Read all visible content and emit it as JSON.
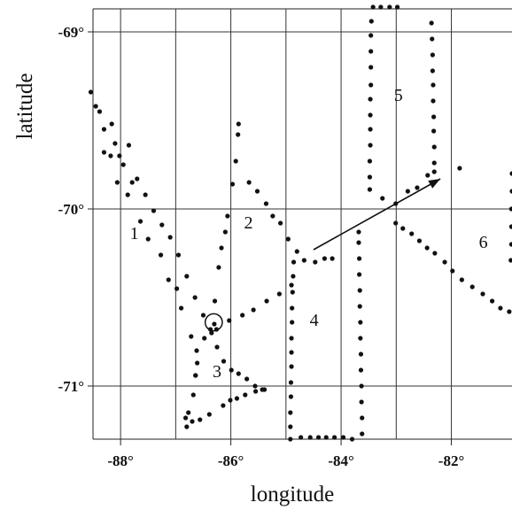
{
  "chart_data": {
    "type": "scatter",
    "title": "",
    "xlabel": "longitude",
    "ylabel": "latitude",
    "xlim": [
      -88.5,
      -80.9
    ],
    "ylim": [
      -71.3,
      -68.87
    ],
    "grid": true,
    "xticks": [
      {
        "value": -88,
        "label": "-88°"
      },
      {
        "value": -86,
        "label": "-86°"
      },
      {
        "value": -84,
        "label": "-84°"
      },
      {
        "value": -82,
        "label": "-82°"
      }
    ],
    "yticks": [
      {
        "value": -69,
        "label": "-69°"
      },
      {
        "value": -70,
        "label": "-70°"
      },
      {
        "value": -71,
        "label": "-71°"
      }
    ],
    "extra_gridlines_x": [
      -87,
      -85,
      -83
    ],
    "segment_labels": [
      {
        "text": "1",
        "x": -87.75,
        "y": -70.17
      },
      {
        "text": "2",
        "x": -85.68,
        "y": -70.11
      },
      {
        "text": "3",
        "x": -86.25,
        "y": -70.95
      },
      {
        "text": "4",
        "x": -84.49,
        "y": -70.66
      },
      {
        "text": "5",
        "x": -82.96,
        "y": -69.39
      },
      {
        "text": "6",
        "x": -81.42,
        "y": -70.22
      }
    ],
    "circle_marker": {
      "x": -86.31,
      "y": -70.64,
      "radius_deg": 0.155
    },
    "arrow": {
      "from": {
        "x": -84.5,
        "y": -70.23
      },
      "to": {
        "x": -82.2,
        "y": -69.83
      }
    },
    "series": [
      {
        "points": [
          [
            -88.54,
            -69.34
          ],
          [
            -88.45,
            -69.42
          ],
          [
            -88.38,
            -69.45
          ],
          [
            -88.3,
            -69.55
          ],
          [
            -88.16,
            -69.52
          ],
          [
            -88.1,
            -69.63
          ],
          [
            -88.02,
            -69.7
          ],
          [
            -87.95,
            -69.75
          ],
          [
            -87.85,
            -69.64
          ],
          [
            -87.79,
            -69.85
          ],
          [
            -87.7,
            -69.83
          ],
          [
            -87.55,
            -69.92
          ],
          [
            -87.4,
            -70.01
          ],
          [
            -87.25,
            -70.09
          ],
          [
            -87.1,
            -70.16
          ],
          [
            -86.95,
            -70.26
          ],
          [
            -86.8,
            -70.38
          ],
          [
            -86.65,
            -70.5
          ],
          [
            -86.5,
            -70.6
          ],
          [
            -86.37,
            -70.68
          ],
          [
            -86.3,
            -70.65
          ]
        ]
      },
      {
        "points": [
          [
            -88.3,
            -69.68
          ],
          [
            -88.18,
            -69.7
          ],
          [
            -88.06,
            -69.85
          ],
          [
            -87.87,
            -69.92
          ],
          [
            -87.64,
            -70.07
          ],
          [
            -87.5,
            -70.17
          ],
          [
            -87.27,
            -70.26
          ],
          [
            -87.13,
            -70.4
          ],
          [
            -86.98,
            -70.45
          ],
          [
            -86.9,
            -70.56
          ],
          [
            -86.72,
            -70.72
          ],
          [
            -86.62,
            -70.8
          ],
          [
            -86.61,
            -70.87
          ],
          [
            -86.64,
            -70.94
          ]
        ]
      },
      {
        "points": [
          [
            -85.86,
            -69.52
          ],
          [
            -85.87,
            -69.58
          ],
          [
            -85.91,
            -69.73
          ],
          [
            -85.97,
            -69.86
          ],
          [
            -86.06,
            -70.04
          ],
          [
            -86.1,
            -70.13
          ],
          [
            -86.17,
            -70.22
          ],
          [
            -86.22,
            -70.33
          ],
          [
            -86.29,
            -70.52
          ],
          [
            -86.35,
            -70.7
          ]
        ]
      },
      {
        "points": [
          [
            -85.67,
            -69.85
          ],
          [
            -85.52,
            -69.9
          ],
          [
            -85.36,
            -69.97
          ],
          [
            -85.24,
            -70.04
          ],
          [
            -85.1,
            -70.08
          ],
          [
            -84.96,
            -70.17
          ],
          [
            -84.8,
            -70.24
          ],
          [
            -84.67,
            -70.29
          ],
          [
            -84.47,
            -70.3
          ],
          [
            -84.3,
            -70.28
          ],
          [
            -84.16,
            -70.28
          ]
        ]
      },
      {
        "points": [
          [
            -84.9,
            -70.43
          ],
          [
            -85.12,
            -70.48
          ],
          [
            -85.35,
            -70.52
          ],
          [
            -85.59,
            -70.57
          ],
          [
            -85.79,
            -70.6
          ],
          [
            -86.03,
            -70.63
          ],
          [
            -86.26,
            -70.68
          ],
          [
            -86.48,
            -70.73
          ]
        ]
      },
      {
        "points": [
          [
            -86.25,
            -70.78
          ],
          [
            -86.13,
            -70.86
          ],
          [
            -85.99,
            -70.91
          ],
          [
            -85.86,
            -70.93
          ],
          [
            -85.71,
            -70.96
          ],
          [
            -85.56,
            -71.0
          ],
          [
            -85.43,
            -71.02
          ]
        ]
      },
      {
        "points": [
          [
            -85.39,
            -71.02
          ],
          [
            -85.55,
            -71.03
          ],
          [
            -85.74,
            -71.05
          ],
          [
            -85.89,
            -71.07
          ],
          [
            -86.01,
            -71.08
          ],
          [
            -86.14,
            -71.11
          ],
          [
            -86.39,
            -71.16
          ],
          [
            -86.56,
            -71.19
          ],
          [
            -86.7,
            -71.2
          ],
          [
            -86.8,
            -71.23
          ]
        ]
      },
      {
        "points": [
          [
            -86.64,
            -70.94
          ],
          [
            -86.68,
            -71.05
          ],
          [
            -86.77,
            -71.15
          ],
          [
            -86.82,
            -71.18
          ]
        ]
      },
      {
        "points": [
          [
            -84.86,
            -70.3
          ],
          [
            -84.87,
            -70.38
          ],
          [
            -84.88,
            -70.47
          ],
          [
            -84.89,
            -70.56
          ],
          [
            -84.89,
            -70.64
          ],
          [
            -84.9,
            -70.73
          ],
          [
            -84.9,
            -70.81
          ],
          [
            -84.9,
            -70.89
          ],
          [
            -84.91,
            -70.98
          ],
          [
            -84.91,
            -71.06
          ],
          [
            -84.92,
            -71.15
          ],
          [
            -84.92,
            -71.23
          ],
          [
            -84.92,
            -71.3
          ]
        ]
      },
      {
        "points": [
          [
            -84.73,
            -71.29
          ],
          [
            -84.56,
            -71.29
          ],
          [
            -84.41,
            -71.29
          ],
          [
            -84.27,
            -71.29
          ],
          [
            -84.12,
            -71.29
          ],
          [
            -83.96,
            -71.29
          ],
          [
            -83.8,
            -71.3
          ]
        ]
      },
      {
        "points": [
          [
            -83.62,
            -71.27
          ],
          [
            -83.62,
            -71.18
          ],
          [
            -83.63,
            -71.09
          ],
          [
            -83.63,
            -71.0
          ],
          [
            -83.64,
            -70.91
          ],
          [
            -83.64,
            -70.82
          ],
          [
            -83.65,
            -70.73
          ],
          [
            -83.65,
            -70.64
          ],
          [
            -83.66,
            -70.55
          ],
          [
            -83.66,
            -70.46
          ],
          [
            -83.67,
            -70.37
          ],
          [
            -83.67,
            -70.28
          ],
          [
            -83.68,
            -70.19
          ],
          [
            -83.68,
            -70.13
          ]
        ]
      },
      {
        "points": [
          [
            -83.48,
            -69.89
          ],
          [
            -83.48,
            -69.82
          ],
          [
            -83.48,
            -69.73
          ],
          [
            -83.47,
            -69.64
          ],
          [
            -83.47,
            -69.55
          ],
          [
            -83.47,
            -69.47
          ],
          [
            -83.47,
            -69.38
          ],
          [
            -83.46,
            -69.3
          ],
          [
            -83.46,
            -69.2
          ],
          [
            -83.46,
            -69.11
          ],
          [
            -83.46,
            -69.02
          ],
          [
            -83.45,
            -68.94
          ],
          [
            -83.42,
            -68.86
          ],
          [
            -83.28,
            -68.86
          ],
          [
            -83.12,
            -68.86
          ],
          [
            -82.98,
            -68.86
          ]
        ]
      },
      {
        "points": [
          [
            -82.36,
            -68.95
          ],
          [
            -82.35,
            -69.04
          ],
          [
            -82.34,
            -69.13
          ],
          [
            -82.34,
            -69.22
          ],
          [
            -82.33,
            -69.3
          ],
          [
            -82.33,
            -69.39
          ],
          [
            -82.32,
            -69.48
          ],
          [
            -82.32,
            -69.56
          ],
          [
            -82.31,
            -69.65
          ],
          [
            -82.31,
            -69.74
          ],
          [
            -82.31,
            -69.79
          ]
        ]
      },
      {
        "points": [
          [
            -83.25,
            -69.94
          ],
          [
            -83.01,
            -69.97
          ],
          [
            -82.79,
            -69.9
          ],
          [
            -82.62,
            -69.88
          ],
          [
            -82.43,
            -69.81
          ],
          [
            -81.85,
            -69.77
          ]
        ]
      },
      {
        "points": [
          [
            -83.01,
            -70.08
          ],
          [
            -82.88,
            -70.11
          ],
          [
            -82.72,
            -70.14
          ],
          [
            -82.58,
            -70.18
          ],
          [
            -82.44,
            -70.22
          ],
          [
            -82.3,
            -70.25
          ],
          [
            -82.12,
            -70.3
          ],
          [
            -81.98,
            -70.35
          ],
          [
            -81.81,
            -70.4
          ],
          [
            -81.62,
            -70.44
          ],
          [
            -81.43,
            -70.48
          ],
          [
            -81.26,
            -70.52
          ],
          [
            -81.11,
            -70.56
          ],
          [
            -80.95,
            -70.58
          ]
        ]
      },
      {
        "points": [
          [
            -80.9,
            -69.8
          ],
          [
            -80.9,
            -69.9
          ],
          [
            -80.91,
            -70.0
          ],
          [
            -80.91,
            -70.1
          ],
          [
            -80.91,
            -70.2
          ],
          [
            -80.92,
            -70.29
          ]
        ]
      }
    ]
  }
}
